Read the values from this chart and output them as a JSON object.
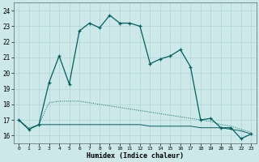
{
  "xlabel": "Humidex (Indice chaleur)",
  "bg_color": "#cce8e8",
  "grid_color": "#aad0d0",
  "line_color": "#006060",
  "xlim": [
    -0.5,
    23.5
  ],
  "ylim": [
    15.5,
    24.5
  ],
  "yticks": [
    16,
    17,
    18,
    19,
    20,
    21,
    22,
    23,
    24
  ],
  "xticks": [
    0,
    1,
    2,
    3,
    4,
    5,
    6,
    7,
    8,
    9,
    10,
    11,
    12,
    13,
    14,
    15,
    16,
    17,
    18,
    19,
    20,
    21,
    22,
    23
  ],
  "series1_x": [
    0,
    1,
    2,
    3,
    4,
    5,
    6,
    7,
    8,
    9,
    10,
    11,
    12,
    13,
    14,
    15,
    16,
    17,
    18,
    19,
    20,
    21,
    22,
    23
  ],
  "series1_y": [
    17.0,
    16.4,
    16.7,
    19.4,
    21.1,
    19.3,
    22.7,
    23.2,
    22.9,
    23.7,
    23.2,
    23.2,
    23.0,
    20.6,
    20.9,
    21.1,
    21.5,
    20.4,
    17.0,
    17.1,
    16.5,
    16.5,
    15.8,
    16.1
  ],
  "series2_x": [
    0,
    1,
    2,
    3,
    4,
    5,
    6,
    7,
    8,
    9,
    10,
    11,
    12,
    13,
    14,
    15,
    16,
    17,
    18,
    19,
    20,
    21,
    22,
    23
  ],
  "series2_y": [
    17.0,
    16.5,
    16.7,
    18.1,
    18.2,
    18.2,
    18.2,
    18.1,
    18.0,
    17.9,
    17.8,
    17.7,
    17.6,
    17.5,
    17.4,
    17.3,
    17.2,
    17.1,
    17.0,
    16.9,
    16.7,
    16.6,
    16.4,
    16.2
  ],
  "series3_x": [
    0,
    1,
    2,
    3,
    4,
    5,
    6,
    7,
    8,
    9,
    10,
    11,
    12,
    13,
    14,
    15,
    16,
    17,
    18,
    19,
    20,
    21,
    22,
    23
  ],
  "series3_y": [
    17.0,
    16.4,
    16.7,
    16.7,
    16.7,
    16.7,
    16.7,
    16.7,
    16.7,
    16.7,
    16.7,
    16.7,
    16.7,
    16.6,
    16.6,
    16.6,
    16.6,
    16.6,
    16.5,
    16.5,
    16.5,
    16.4,
    16.3,
    16.1
  ],
  "xlabel_fontsize": 6.0,
  "tick_fontsize": 5.5
}
